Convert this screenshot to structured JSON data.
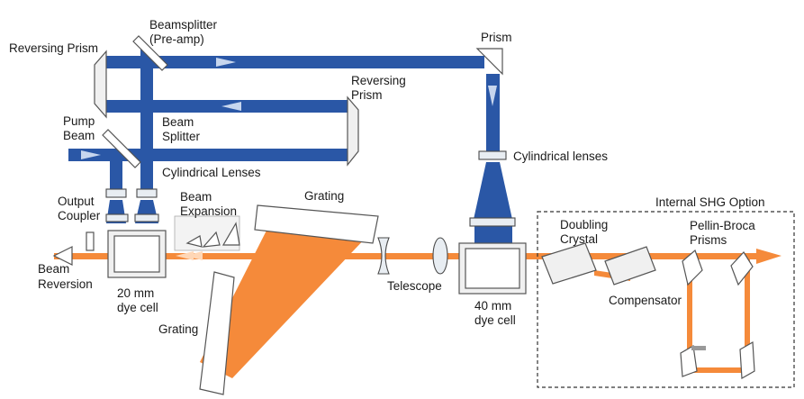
{
  "labels": {
    "reversing_prism_left": "Reversing Prism",
    "beamsplitter_preamp_1": "Beamsplitter",
    "beamsplitter_preamp_2": "(Pre-amp)",
    "prism_top": "Prism",
    "reversing_prism_right_1": "Reversing",
    "reversing_prism_right_2": "Prism",
    "pump_beam_1": "Pump",
    "pump_beam_2": "Beam",
    "beam_splitter_1": "Beam",
    "beam_splitter_2": "Splitter",
    "cylindrical_lenses_left": "Cylindrical Lenses",
    "cylindrical_lenses_right": "Cylindrical lenses",
    "output_coupler_1": "Output",
    "output_coupler_2": "Coupler",
    "beam_expansion_1": "Beam",
    "beam_expansion_2": "Expansion",
    "grating_top": "Grating",
    "beam_reversion_1": "Beam",
    "beam_reversion_2": "Reversion",
    "dye_cell_20_1": "20 mm",
    "dye_cell_20_2": "dye cell",
    "grating_bottom": "Grating",
    "telescope": "Telescope",
    "dye_cell_40_1": "40 mm",
    "dye_cell_40_2": "dye cell",
    "shg_option": "Internal SHG Option",
    "doubling_crystal_1": "Doubling",
    "doubling_crystal_2": "Crystal",
    "compensator": "Compensator",
    "pellin_broca_1": "Pellin-Broca",
    "pellin_broca_2": "Prisms"
  },
  "colors": {
    "pump_beam": "#2a57a6",
    "laser_beam": "#f58a3a"
  }
}
